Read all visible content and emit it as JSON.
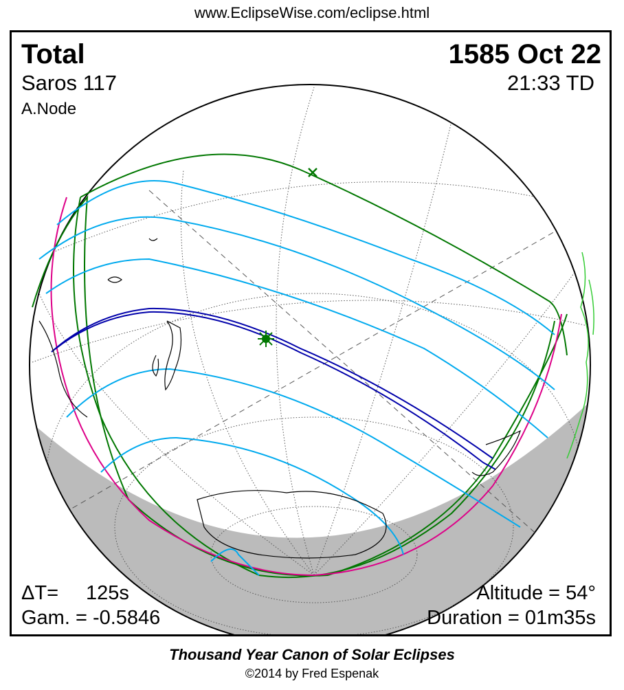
{
  "header": {
    "url": "www.EclipseWise.com/eclipse.html"
  },
  "eclipse": {
    "type": "Total",
    "date": "1585 Oct 22",
    "saros": "Saros 117",
    "time": "21:33 TD",
    "node": "A.Node",
    "delta_t_label": "ΔT=",
    "delta_t_value": "125s",
    "gamma": "Gam. = -0.5846",
    "altitude": "Altitude = 54°",
    "duration": "Duration = 01m35s"
  },
  "footer": {
    "canon": "Thousand Year Canon of Solar Eclipses",
    "copyright": "©2014 by Fred Espenak"
  },
  "colors": {
    "totality_path": "#0000aa",
    "penumbral_limit": "#007700",
    "partial_lines": "#00aaee",
    "rise_set_limit": "#dd0088",
    "coastlines": "#000000",
    "green_coast": "#33cc33",
    "night_shade": "#bbbbbb"
  },
  "icons": {
    "greatest_eclipse": "green-star-icon",
    "sub_solar_point": "green-x-icon"
  }
}
